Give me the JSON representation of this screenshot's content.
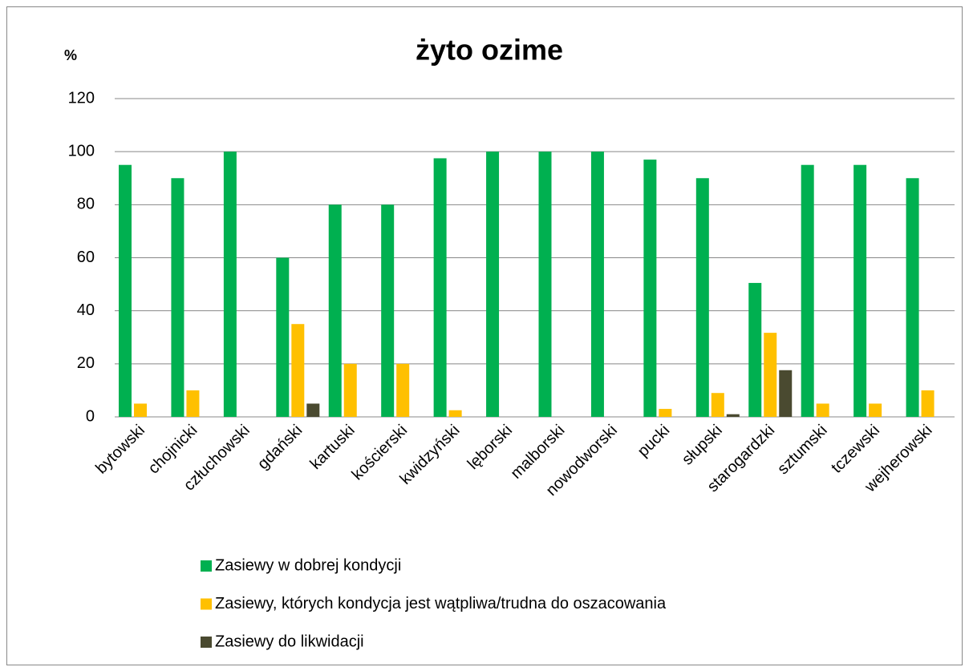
{
  "chart_data": {
    "type": "bar",
    "title": "żyto ozime",
    "y_axis_label": "%",
    "categories": [
      "bytowski",
      "chojnicki",
      "człuchowski",
      "gdański",
      "kartuski",
      "kościerski",
      "kwidzyński",
      "lęborski",
      "malborski",
      "nowodworski",
      "pucki",
      "słupski",
      "starogardzki",
      "sztumski",
      "tczewski",
      "wejherowski"
    ],
    "series": [
      {
        "name": "Zasiewy w dobrej kondycji",
        "color": "#00b050",
        "values": [
          95,
          90,
          100,
          60,
          80,
          80,
          97.5,
          100,
          100,
          100,
          97,
          90,
          50.5,
          95,
          95,
          90
        ]
      },
      {
        "name": "Zasiewy, których kondycja jest wątpliwa/trudna do oszacowania",
        "color": "#ffc000",
        "values": [
          5,
          10,
          0,
          35,
          20,
          20,
          2.5,
          0,
          0,
          0,
          3,
          9,
          31.7,
          5,
          5,
          10
        ]
      },
      {
        "name": "Zasiewy do likwidacji",
        "color": "#4a4a30",
        "values": [
          0,
          0,
          0,
          5,
          0,
          0,
          0,
          0,
          0,
          0,
          0,
          1,
          17.6,
          0,
          0,
          0
        ]
      }
    ],
    "ylim": [
      0,
      120
    ],
    "yticks": [
      0,
      20,
      40,
      60,
      80,
      100,
      120
    ],
    "grid": true,
    "legend": "bottom"
  }
}
